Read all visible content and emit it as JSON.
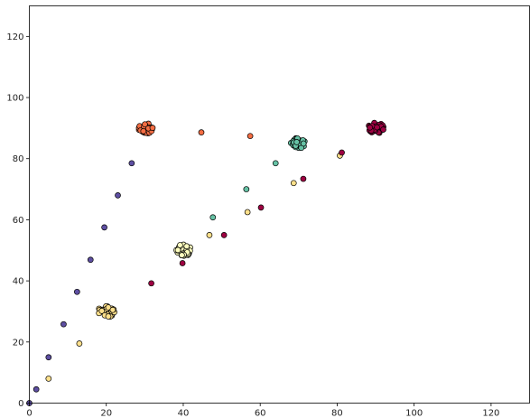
{
  "chart_data": {
    "type": "scatter",
    "title": "",
    "xlabel": "",
    "ylabel": "",
    "xlim": [
      0,
      130
    ],
    "ylim": [
      0,
      130
    ],
    "xticks": [
      0,
      20,
      40,
      60,
      80,
      100,
      120
    ],
    "yticks": [
      0,
      20,
      40,
      60,
      80,
      100,
      120
    ],
    "grid": false,
    "legend": "none",
    "series": [
      {
        "color": "#5e4fa2",
        "points": [
          [
            0,
            0
          ],
          [
            1.8,
            4.5
          ],
          [
            5,
            15
          ],
          [
            8.9,
            25.8
          ],
          [
            12.4,
            36.4
          ],
          [
            15.9,
            46.9
          ],
          [
            19.5,
            57.5
          ],
          [
            23,
            68
          ],
          [
            26.6,
            78.5
          ]
        ]
      },
      {
        "color": "#fee08b",
        "points": [
          [
            5,
            8
          ],
          [
            13,
            19.5
          ],
          [
            46.8,
            55
          ],
          [
            56.7,
            62.5
          ],
          [
            68.7,
            72
          ],
          [
            80.7,
            81
          ]
        ]
      },
      {
        "color": "#9e0142",
        "points": [
          [
            31.7,
            39.2
          ],
          [
            39.8,
            45.8
          ],
          [
            50.6,
            55
          ],
          [
            60.2,
            64
          ],
          [
            71.2,
            73.4
          ],
          [
            81.2,
            82
          ]
        ]
      },
      {
        "color": "#f46d43",
        "points": [
          [
            44.7,
            88.6
          ],
          [
            57.4,
            87.4
          ]
        ]
      },
      {
        "color": "#66c2a5",
        "points": [
          [
            47.7,
            60.8
          ],
          [
            56.4,
            70
          ],
          [
            64,
            78.5
          ]
        ]
      }
    ],
    "clusters": [
      {
        "center": [
          20,
          30
        ],
        "color": "#fee08b"
      },
      {
        "center": [
          30,
          90
        ],
        "color": "#f46d43"
      },
      {
        "center": [
          40,
          50
        ],
        "color": "#ffffbf"
      },
      {
        "center": [
          70,
          85
        ],
        "color": "#66c2a5"
      },
      {
        "center": [
          90,
          90
        ],
        "color": "#9e0142"
      }
    ]
  }
}
